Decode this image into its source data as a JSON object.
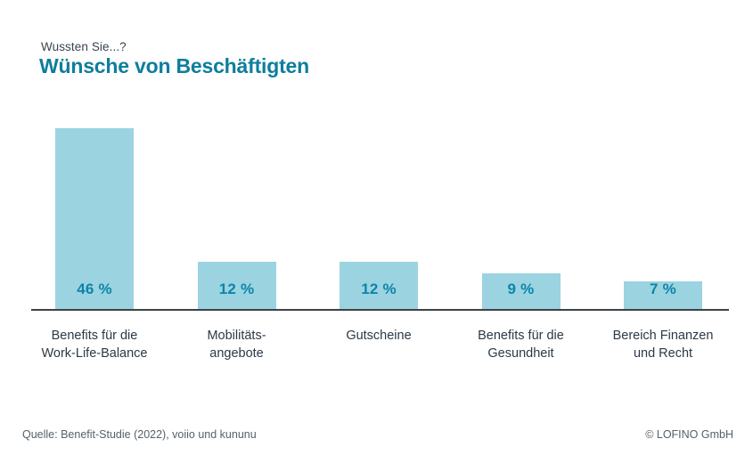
{
  "header": {
    "kicker": "Wussten Sie...?",
    "title": "Wünsche von Beschäftigten"
  },
  "chart_data": {
    "type": "bar",
    "title": "Wünsche von Beschäftigten",
    "subtitle": "Wussten Sie...?",
    "categories": [
      "Benefits für die Work-Life-Balance",
      "Mobilitätsangebote",
      "Gutscheine",
      "Benefits für die Gesundheit",
      "Bereich Finanzen und Recht"
    ],
    "category_label_lines": [
      [
        "Benefits für die",
        "Work-Life-Balance"
      ],
      [
        "Mobilitäts-",
        "angebote"
      ],
      [
        "Gutscheine"
      ],
      [
        "Benefits für die",
        "Gesundheit"
      ],
      [
        "Bereich Finanzen",
        "und Recht"
      ]
    ],
    "values": [
      46,
      12,
      12,
      9,
      7
    ],
    "value_labels": [
      "46 %",
      "12 %",
      "12 %",
      "9 %",
      "7 %"
    ],
    "unit": "%",
    "xlabel": "",
    "ylabel": "",
    "ylim": [
      0,
      50
    ],
    "grid": false,
    "legend": false
  },
  "colors": {
    "background": "#ffffff",
    "bar_fill": "#9cd3e1",
    "value_label": "#0d85a7",
    "title": "#0d7e9c",
    "kicker": "#39434e",
    "axis_line": "#3b4247",
    "category_label": "#2b3947",
    "footer_text": "#566069"
  },
  "footer": {
    "source": "Quelle: Benefit-Studie (2022), voiio und kununu",
    "copyright": "© LOFINO GmbH"
  }
}
